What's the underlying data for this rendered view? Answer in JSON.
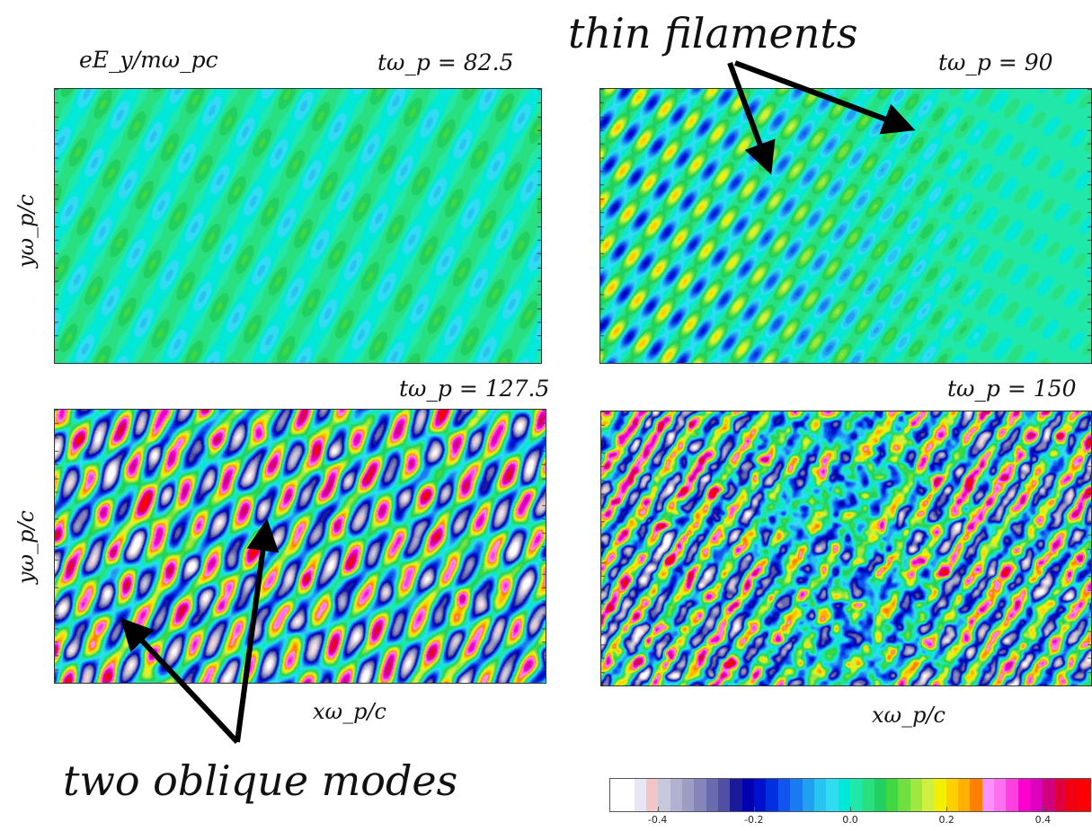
{
  "labels": {
    "field": "eE_y/mω_pc",
    "ylabel": "yω_p/c",
    "xlabel": "xω_p/c",
    "annotation_top": "thin filaments",
    "annotation_bottom": "two oblique modes"
  },
  "chart_data": [
    {
      "type": "heatmap",
      "panel": "top-left",
      "time_label": "tω_p = 82.5",
      "amplitude": 0.08,
      "pattern": "oblique stripes, weak"
    },
    {
      "type": "heatmap",
      "panel": "top-right",
      "time_label": "tω_p = 90",
      "amplitude": 0.22,
      "pattern": "thin oblique filaments"
    },
    {
      "type": "heatmap",
      "panel": "bottom-left",
      "time_label": "tω_p = 127.5",
      "amplitude": 0.42,
      "pattern": "two oblique modes"
    },
    {
      "type": "heatmap",
      "panel": "bottom-right",
      "time_label": "tω_p = 150",
      "amplitude": 0.48,
      "pattern": "turbulent"
    }
  ],
  "colorbar": {
    "vmin": -0.5,
    "vmax": 0.5,
    "ticks": [
      -0.4,
      -0.2,
      0.0,
      0.2,
      0.4
    ],
    "tick_labels": [
      "-0.4",
      "-0.2",
      "0.0",
      "0.2",
      "0.4"
    ],
    "colors": [
      "#ffffff",
      "#ffffff",
      "#e6e6f5",
      "#f2c6c6",
      "#c8c8dc",
      "#b2b2d0",
      "#9c9cc4",
      "#8585ba",
      "#6a6aae",
      "#4f4fa4",
      "#1a1a9a",
      "#0000b0",
      "#0010cc",
      "#0030e0",
      "#1055ee",
      "#1a7af0",
      "#22a0f0",
      "#28c4f0",
      "#30dcf0",
      "#00e8d8",
      "#20e8a8",
      "#28e080",
      "#20d060",
      "#40d840",
      "#70e040",
      "#a0e840",
      "#d0f040",
      "#f0f000",
      "#ffd000",
      "#ffb000",
      "#ff8000",
      "#ff90ff",
      "#ff70f0",
      "#ff40e0",
      "#ff00d0",
      "#e000c0",
      "#d00080",
      "#e00040",
      "#f00010",
      "#ff0000"
    ]
  }
}
